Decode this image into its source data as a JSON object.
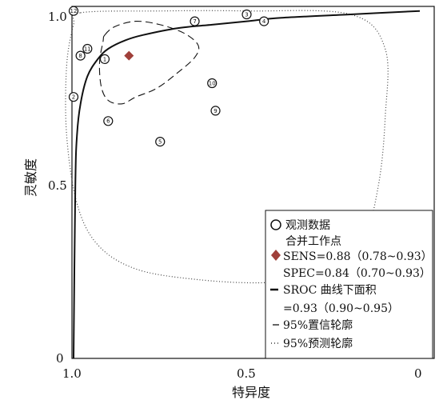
{
  "chart_data": {
    "type": "scatter",
    "xlabel": "特异度",
    "ylabel": "灵敏度",
    "xlim": [
      1.0,
      0
    ],
    "ylim": [
      0,
      1.0
    ],
    "x_ticks": [
      "1.0",
      "0.5",
      "0"
    ],
    "y_ticks": [
      "0",
      "0.5",
      "1.0"
    ],
    "x_reversed": true,
    "studies": [
      {
        "id": "1",
        "spec": 0.91,
        "sens": 0.87
      },
      {
        "id": "2",
        "spec": 1.0,
        "sens": 0.76
      },
      {
        "id": "3",
        "spec": 0.5,
        "sens": 1.0
      },
      {
        "id": "4",
        "spec": 0.45,
        "sens": 0.98
      },
      {
        "id": "5",
        "spec": 0.75,
        "sens": 0.63
      },
      {
        "id": "6",
        "spec": 0.9,
        "sens": 0.69
      },
      {
        "id": "7",
        "spec": 0.65,
        "sens": 0.98
      },
      {
        "id": "8",
        "spec": 0.98,
        "sens": 0.88
      },
      {
        "id": "9",
        "spec": 0.59,
        "sens": 0.72
      },
      {
        "id": "10",
        "spec": 0.6,
        "sens": 0.8
      },
      {
        "id": "11",
        "spec": 0.96,
        "sens": 0.9
      },
      {
        "id": "12",
        "spec": 1.0,
        "sens": 1.01
      }
    ],
    "summary_point": {
      "spec": 0.84,
      "sens": 0.88,
      "color": "#a0403a"
    },
    "sroc_curve": [
      [
        1.0,
        0.0
      ],
      [
        0.995,
        0.5
      ],
      [
        0.99,
        0.65
      ],
      [
        0.98,
        0.74
      ],
      [
        0.96,
        0.82
      ],
      [
        0.93,
        0.87
      ],
      [
        0.9,
        0.9
      ],
      [
        0.85,
        0.925
      ],
      [
        0.8,
        0.94
      ],
      [
        0.7,
        0.96
      ],
      [
        0.6,
        0.97
      ],
      [
        0.5,
        0.98
      ],
      [
        0.4,
        0.99
      ],
      [
        0.2,
        1.0
      ],
      [
        0.0,
        1.01
      ]
    ],
    "confidence_contour": [
      [
        0.91,
        0.94
      ],
      [
        0.88,
        0.965
      ],
      [
        0.82,
        0.98
      ],
      [
        0.75,
        0.97
      ],
      [
        0.68,
        0.945
      ],
      [
        0.64,
        0.91
      ],
      [
        0.65,
        0.875
      ],
      [
        0.7,
        0.83
      ],
      [
        0.76,
        0.785
      ],
      [
        0.82,
        0.76
      ],
      [
        0.86,
        0.74
      ],
      [
        0.9,
        0.75
      ],
      [
        0.92,
        0.79
      ],
      [
        0.925,
        0.86
      ],
      [
        0.915,
        0.92
      ]
    ],
    "prediction_contour": [
      [
        0.98,
        1.005
      ],
      [
        0.75,
        1.01
      ],
      [
        0.5,
        1.01
      ],
      [
        0.2,
        1.0
      ],
      [
        0.1,
        0.9
      ],
      [
        0.1,
        0.7
      ],
      [
        0.12,
        0.5
      ],
      [
        0.17,
        0.31
      ],
      [
        0.25,
        0.24
      ],
      [
        0.45,
        0.22
      ],
      [
        0.65,
        0.23
      ],
      [
        0.82,
        0.26
      ],
      [
        0.93,
        0.33
      ],
      [
        0.99,
        0.45
      ],
      [
        1.02,
        0.65
      ],
      [
        1.02,
        0.85
      ],
      [
        1.0,
        0.97
      ]
    ],
    "legend": {
      "placement": "bottom-right",
      "observed": "观测数据",
      "summary_title": "合并工作点",
      "sens": "SENS=0.88（0.78~0.93）",
      "spec": "SPEC=0.84（0.70~0.93）",
      "sroc": "SROC 曲线下面积",
      "auc": "=0.93（0.90~0.95）",
      "conf": "95%置信轮廓",
      "pred": "95%预测轮廓"
    }
  }
}
